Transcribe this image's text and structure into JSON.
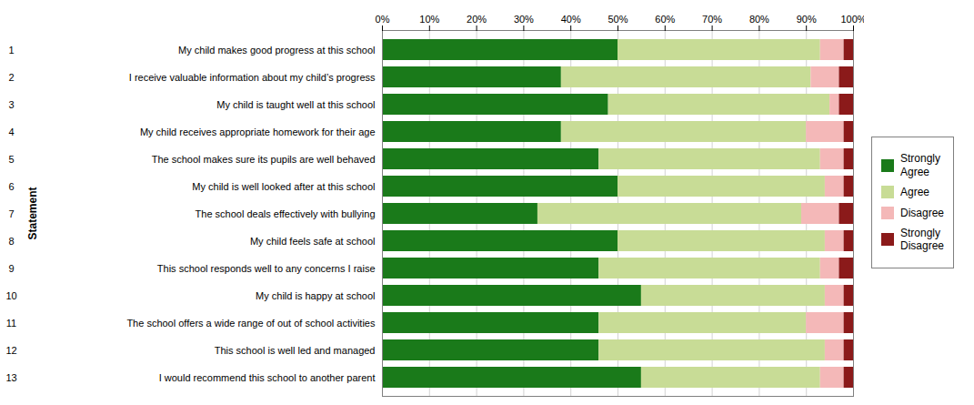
{
  "chart_data": {
    "type": "bar",
    "orientation": "horizontal",
    "stacked": true,
    "y_label": "Statement",
    "categories": [
      "My child makes good progress at this school",
      "I receive valuable information about my child’s progress",
      "My child is taught well at this school",
      "My child receives appropriate homework for their age",
      "The school makes sure its pupils are well behaved",
      "My child is well looked after at this school",
      "The school deals effectively with bullying",
      "My child feels safe at school",
      "This school responds well to any concerns I raise",
      "My child is happy at school",
      "The school offers a wide range of out of school activities",
      "This school is well led and managed",
      "I would recommend this school to another parent"
    ],
    "row_labels": [
      "1",
      "2",
      "3",
      "4",
      "5",
      "6",
      "7",
      "8",
      "9",
      "10",
      "11",
      "12",
      "13"
    ],
    "series": [
      {
        "name": "Strongly\nAgree",
        "color": "#1a7a1a",
        "values": [
          50,
          38,
          48,
          38,
          46,
          50,
          33,
          50,
          46,
          55,
          46,
          46,
          55
        ]
      },
      {
        "name": "Agree",
        "color": "#c8dc96",
        "values": [
          43,
          53,
          47,
          52,
          47,
          44,
          56,
          44,
          47,
          39,
          44,
          48,
          38
        ]
      },
      {
        "name": "Disagree",
        "color": "#f4b8b8",
        "values": [
          5,
          6,
          2,
          8,
          5,
          4,
          8,
          4,
          4,
          4,
          8,
          4,
          5
        ]
      },
      {
        "name": "Strongly\nDisagree",
        "color": "#8b1a1a",
        "values": [
          2,
          3,
          3,
          2,
          2,
          2,
          3,
          2,
          3,
          2,
          2,
          2,
          2
        ]
      }
    ],
    "xlim": [
      0,
      100
    ],
    "xticks": [
      {
        "value": 0,
        "label": "0%"
      },
      {
        "value": 10,
        "label": "10%"
      },
      {
        "value": 20,
        "label": "20%"
      },
      {
        "value": 30,
        "label": "30%"
      },
      {
        "value": 40,
        "label": "40%"
      },
      {
        "value": 50,
        "label": "50%"
      },
      {
        "value": 60,
        "label": "60%"
      },
      {
        "value": 70,
        "label": "70%"
      },
      {
        "value": 80,
        "label": "80%"
      },
      {
        "value": 90,
        "label": "90%"
      },
      {
        "value": 100,
        "label": "100%"
      }
    ],
    "grid": true,
    "legend": "right"
  }
}
